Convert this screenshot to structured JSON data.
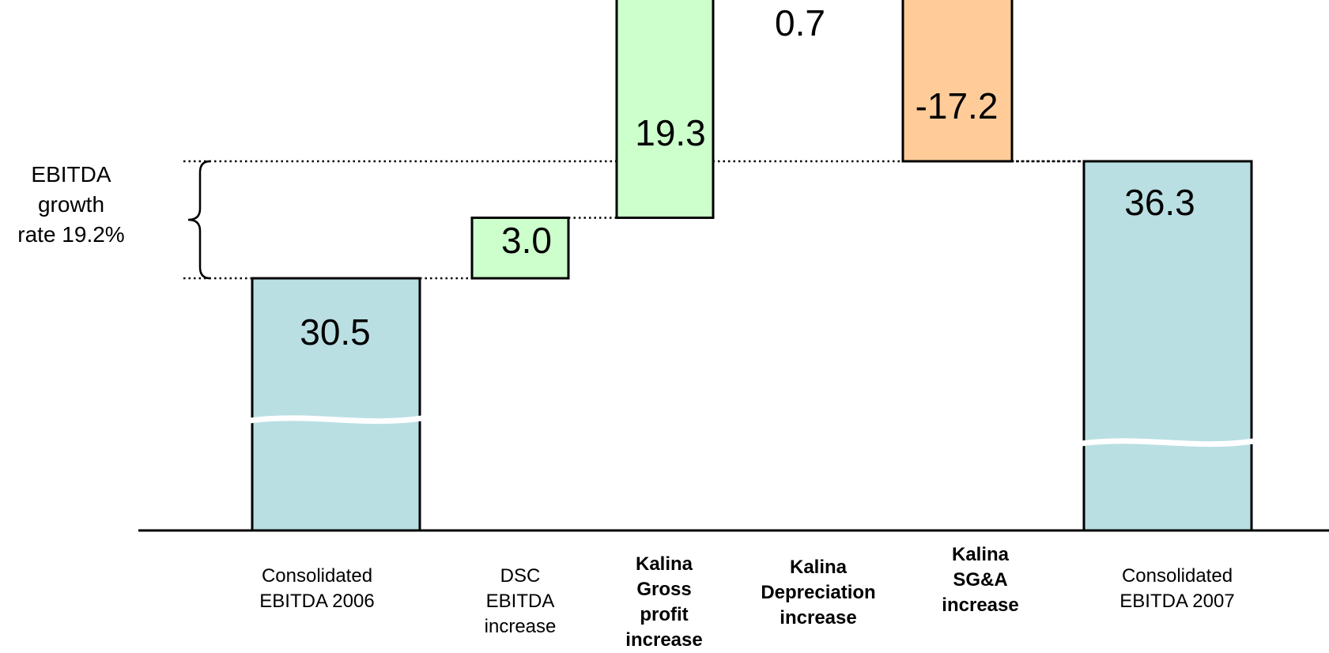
{
  "chart_data": {
    "type": "bar",
    "subtype": "waterfall",
    "title": "",
    "xlabel": "",
    "ylabel": "",
    "axis_break": true,
    "grid": false,
    "legend": "none",
    "categories": [
      "Consolidated\nEBITDA 2006",
      "DSC\nEBITDA\nincrease",
      "Kalina\nGross\nprofit\nincrease",
      "Kalina\nDepreciation\nincrease",
      "Kalina\nSG&A\nincrease",
      "Consolidated\nEBITDA 2007"
    ],
    "category_bold": [
      false,
      false,
      true,
      true,
      true,
      false
    ],
    "bars": [
      {
        "kind": "total",
        "value": 30.5,
        "label": "30.5",
        "color": "#b9dfe3"
      },
      {
        "kind": "delta",
        "value": 3.0,
        "label": "3.0",
        "color": "#ccffcc"
      },
      {
        "kind": "delta",
        "value": 19.3,
        "label": "19.3",
        "color": "#ccffcc"
      },
      {
        "kind": "delta",
        "value": 0.7,
        "label": "0.7",
        "color": "#ccffcc"
      },
      {
        "kind": "delta",
        "value": -17.2,
        "label": "-17.2",
        "color": "#ffcc99"
      },
      {
        "kind": "total",
        "value": 36.3,
        "label": "36.3",
        "color": "#b9dfe3"
      }
    ],
    "annotation": {
      "text": "EBITDA\ngrowth\nrate 19.2%",
      "from_value": 30.5,
      "to_value": 36.3
    }
  }
}
